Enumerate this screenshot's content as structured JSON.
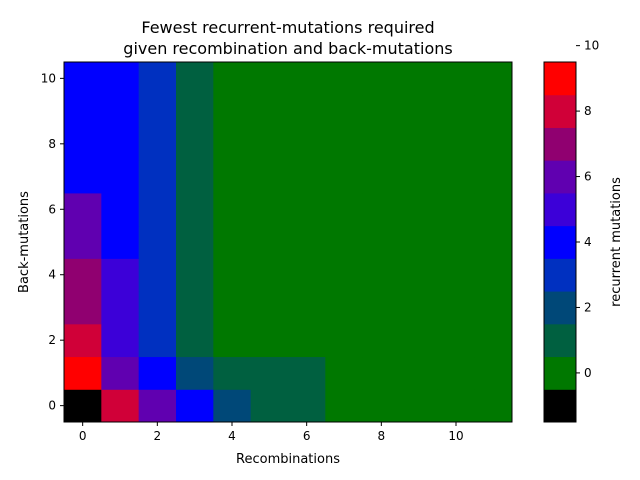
{
  "chart_data": {
    "type": "heatmap",
    "title": [
      "Fewest recurrent-mutations required",
      "given recombination and back-mutations"
    ],
    "xlabel": "Recombinations",
    "ylabel": "Back-mutations",
    "x_ticks": [
      "0",
      "2",
      "4",
      "6",
      "8",
      "10"
    ],
    "y_ticks": [
      "0",
      "2",
      "4",
      "6",
      "8",
      "10"
    ],
    "x_range": [
      0,
      11
    ],
    "y_range": [
      0,
      10
    ],
    "colorbar": {
      "label": "recurrent mutations",
      "ticks": [
        "0",
        "2",
        "4",
        "6",
        "8",
        "10"
      ],
      "range": [
        -1,
        10
      ],
      "colors": [
        "#000000",
        "#007800",
        "#006040",
        "#004878",
        "#0030c0",
        "#0000ff",
        "#3c00d8",
        "#6000b0",
        "#900070",
        "#d00038",
        "#ff0000"
      ]
    },
    "rows": [
      [
        -1,
        8,
        6,
        4,
        2,
        1,
        1,
        0,
        0,
        0,
        0,
        0
      ],
      [
        9,
        6,
        4,
        2,
        1,
        1,
        1,
        0,
        0,
        0,
        0,
        0
      ],
      [
        8,
        5,
        3,
        1,
        0,
        0,
        0,
        0,
        0,
        0,
        0,
        0
      ],
      [
        7,
        5,
        3,
        1,
        0,
        0,
        0,
        0,
        0,
        0,
        0,
        0
      ],
      [
        7,
        5,
        3,
        1,
        0,
        0,
        0,
        0,
        0,
        0,
        0,
        0
      ],
      [
        6,
        4,
        3,
        1,
        0,
        0,
        0,
        0,
        0,
        0,
        0,
        0
      ],
      [
        6,
        4,
        3,
        1,
        0,
        0,
        0,
        0,
        0,
        0,
        0,
        0
      ],
      [
        4,
        4,
        3,
        1,
        0,
        0,
        0,
        0,
        0,
        0,
        0,
        0
      ],
      [
        4,
        4,
        3,
        1,
        0,
        0,
        0,
        0,
        0,
        0,
        0,
        0
      ],
      [
        4,
        4,
        3,
        1,
        0,
        0,
        0,
        0,
        0,
        0,
        0,
        0
      ],
      [
        4,
        4,
        3,
        1,
        0,
        0,
        0,
        0,
        0,
        0,
        0,
        0
      ]
    ]
  }
}
